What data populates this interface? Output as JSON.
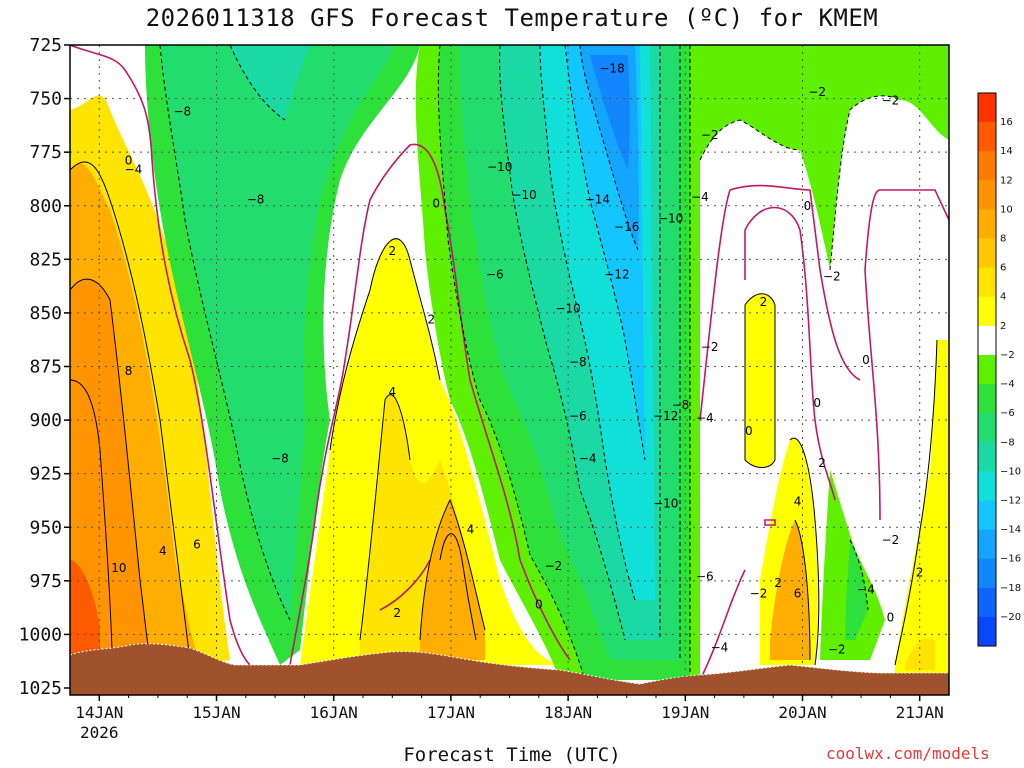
{
  "title": "2026011318 GFS Forecast Temperature (ºC) for KMEM",
  "xlabel": "Forecast Time (UTC)",
  "credit": "coolwx.com/models",
  "colors": {
    "ground": "#a0522d",
    "zero_line": "#c0186b",
    "grid": "#444444"
  },
  "chart_data": {
    "type": "heatmap",
    "title": "2026011318 GFS Forecast Temperature (ºC) for KMEM",
    "xlabel": "Forecast Time (UTC)",
    "ylabel": "",
    "y_axis": {
      "inverted": true,
      "range": [
        725,
        1025
      ],
      "ticks": [
        725,
        750,
        775,
        800,
        825,
        850,
        875,
        900,
        925,
        950,
        975,
        1000,
        1025
      ]
    },
    "x_axis": {
      "range": [
        "2026-01-13 18Z",
        "2026-01-21 06Z"
      ],
      "ticks": [
        {
          "label": "14JAN",
          "sub": "2026",
          "date": "2026-01-14 00Z"
        },
        {
          "label": "15JAN",
          "sub": "",
          "date": "2026-01-15 00Z"
        },
        {
          "label": "16JAN",
          "sub": "",
          "date": "2026-01-16 00Z"
        },
        {
          "label": "17JAN",
          "sub": "",
          "date": "2026-01-17 00Z"
        },
        {
          "label": "18JAN",
          "sub": "",
          "date": "2026-01-18 00Z"
        },
        {
          "label": "19JAN",
          "sub": "",
          "date": "2026-01-19 00Z"
        },
        {
          "label": "20JAN",
          "sub": "",
          "date": "2026-01-20 00Z"
        },
        {
          "label": "21JAN",
          "sub": "",
          "date": "2026-01-21 00Z"
        }
      ]
    },
    "grid": true,
    "colorbar": {
      "levels": [
        "16",
        "14",
        "12",
        "10",
        "8",
        "6",
        "4",
        "2",
        "−2",
        "−4",
        "−6",
        "−8",
        "−10",
        "−12",
        "−14",
        "−16",
        "−18",
        "−20"
      ],
      "colors": [
        "#ff3300",
        "#ff5a00",
        "#ff7a00",
        "#ff9400",
        "#ffae00",
        "#ffc800",
        "#ffe400",
        "#ffff00",
        "#ffffff",
        "#5ef000",
        "#2ee03a",
        "#22dd6e",
        "#1ad9a5",
        "#11e0d8",
        "#13c6ff",
        "#14a6ff",
        "#1286ff",
        "#0e66ff",
        "#0a46ff"
      ]
    },
    "contour_labels": [
      {
        "text": "0",
        "time": "2026-01-14 06Z",
        "p": 779
      },
      {
        "text": "−4",
        "time": "2026-01-14 07Z",
        "p": 783
      },
      {
        "text": "−8",
        "time": "2026-01-14 17Z",
        "p": 756
      },
      {
        "text": "−8",
        "time": "2026-01-15 08Z",
        "p": 797
      },
      {
        "text": "−8",
        "time": "2026-01-15 13Z",
        "p": 918
      },
      {
        "text": "0",
        "time": "2026-01-16 21Z",
        "p": 799
      },
      {
        "text": "2",
        "time": "2026-01-16 12Z",
        "p": 821
      },
      {
        "text": "2",
        "time": "2026-01-16 20Z",
        "p": 853
      },
      {
        "text": "4",
        "time": "2026-01-16 12Z",
        "p": 887
      },
      {
        "text": "−6",
        "time": "2026-01-17 09Z",
        "p": 832
      },
      {
        "text": "−10",
        "time": "2026-01-17 10Z",
        "p": 782
      },
      {
        "text": "−10",
        "time": "2026-01-17 15Z",
        "p": 795
      },
      {
        "text": "−18",
        "time": "2026-01-18 09Z",
        "p": 736
      },
      {
        "text": "−14",
        "time": "2026-01-18 06Z",
        "p": 797
      },
      {
        "text": "−16",
        "time": "2026-01-18 12Z",
        "p": 810
      },
      {
        "text": "−12",
        "time": "2026-01-18 10Z",
        "p": 832
      },
      {
        "text": "−10",
        "time": "2026-01-18 00Z",
        "p": 848
      },
      {
        "text": "−8",
        "time": "2026-01-18 02Z",
        "p": 873
      },
      {
        "text": "−6",
        "time": "2026-01-18 02Z",
        "p": 898
      },
      {
        "text": "−4",
        "time": "2026-01-18 04Z",
        "p": 918
      },
      {
        "text": "−2",
        "time": "2026-01-17 21Z",
        "p": 968
      },
      {
        "text": "0",
        "time": "2026-01-17 18Z",
        "p": 986
      },
      {
        "text": "2",
        "time": "2026-01-16 13Z",
        "p": 990
      },
      {
        "text": "4",
        "time": "2026-01-17 04Z",
        "p": 951
      },
      {
        "text": "10",
        "time": "2026-01-14 04Z",
        "p": 969
      },
      {
        "text": "8",
        "time": "2026-01-14 06Z",
        "p": 877
      },
      {
        "text": "4",
        "time": "2026-01-14 13Z",
        "p": 961
      },
      {
        "text": "6",
        "time": "2026-01-14 20Z",
        "p": 958
      },
      {
        "text": "−10",
        "time": "2026-01-18 21Z",
        "p": 806
      },
      {
        "text": "−4",
        "time": "2026-01-19 03Z",
        "p": 796
      },
      {
        "text": "−2",
        "time": "2026-01-19 05Z",
        "p": 767
      },
      {
        "text": "−8",
        "time": "2026-01-18 23Z",
        "p": 893
      },
      {
        "text": "−12",
        "time": "2026-01-18 20Z",
        "p": 898
      },
      {
        "text": "−4",
        "time": "2026-01-19 04Z",
        "p": 899
      },
      {
        "text": "−2",
        "time": "2026-01-19 05Z",
        "p": 866
      },
      {
        "text": "−10",
        "time": "2026-01-18 20Z",
        "p": 939
      },
      {
        "text": "−6",
        "time": "2026-01-19 04Z",
        "p": 973
      },
      {
        "text": "−4",
        "time": "2026-01-19 07Z",
        "p": 1006
      },
      {
        "text": "−2",
        "time": "2026-01-19 15Z",
        "p": 981
      },
      {
        "text": "−2",
        "time": "2026-01-20 03Z",
        "p": 747
      },
      {
        "text": "−2",
        "time": "2026-01-20 18Z",
        "p": 751
      },
      {
        "text": "0",
        "time": "2026-01-20 01Z",
        "p": 800
      },
      {
        "text": "−2",
        "time": "2026-01-20 06Z",
        "p": 833
      },
      {
        "text": "2",
        "time": "2026-01-19 16Z",
        "p": 845
      },
      {
        "text": "0",
        "time": "2026-01-20 13Z",
        "p": 872
      },
      {
        "text": "0",
        "time": "2026-01-20 03Z",
        "p": 892
      },
      {
        "text": "0",
        "time": "2026-01-19 13Z",
        "p": 905
      },
      {
        "text": "2",
        "time": "2026-01-20 04Z",
        "p": 920
      },
      {
        "text": "4",
        "time": "2026-01-19 23Z",
        "p": 938
      },
      {
        "text": "2",
        "time": "2026-01-19 19Z",
        "p": 976
      },
      {
        "text": "6",
        "time": "2026-01-19 23Z",
        "p": 981
      },
      {
        "text": "−2",
        "time": "2026-01-20 07Z",
        "p": 1007
      },
      {
        "text": "−4",
        "time": "2026-01-20 13Z",
        "p": 979
      },
      {
        "text": "−2",
        "time": "2026-01-20 18Z",
        "p": 956
      },
      {
        "text": "2",
        "time": "2026-01-21 00Z",
        "p": 971
      },
      {
        "text": "0",
        "time": "2026-01-20 18Z",
        "p": 992
      }
    ]
  }
}
